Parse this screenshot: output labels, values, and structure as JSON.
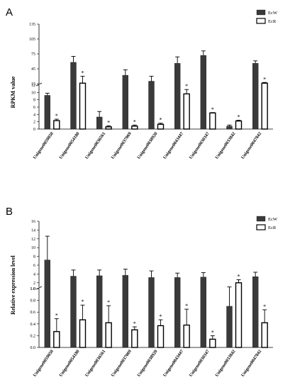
{
  "chart_data": [
    {
      "type": "bar",
      "panel": "A",
      "ylabel": "RPKM value",
      "categories": [
        "Unigene0059050",
        "Unigene0054180",
        "Unigene0036561",
        "Unigene0037069",
        "Unigene0038920",
        "Unigene0043447",
        "Unigene0030347",
        "Unigene0033842",
        "Unigene0047842"
      ],
      "series": [
        {
          "name": "EcW",
          "values": [
            9.2,
            58,
            3.3,
            32,
            20,
            56,
            72,
            0.8,
            56
          ],
          "errors": [
            0.6,
            12,
            1.5,
            11,
            10,
            13,
            9,
            0.3,
            5
          ],
          "color": "#3a3a3a"
        },
        {
          "name": "EcR",
          "values": [
            2.3,
            16,
            0.6,
            0.8,
            1.3,
            9.6,
            4.4,
            2.2,
            16
          ],
          "errors": [
            0.4,
            14,
            0.3,
            0.3,
            0.3,
            1.2,
            0.1,
            0.2,
            1.5
          ],
          "color": "#ffffff"
        }
      ],
      "significance": [
        "*",
        "*",
        "*",
        "*",
        "*",
        "*",
        "*",
        "*",
        "*"
      ],
      "lower_ticks": [
        "0",
        "2",
        "4",
        "6",
        "8",
        "10",
        "12"
      ],
      "upper_ticks": [
        "15",
        "45",
        "75",
        "105",
        "135"
      ],
      "axis_break": [
        12,
        15
      ],
      "ylim": [
        0,
        135
      ],
      "legend": "top-right"
    },
    {
      "type": "bar",
      "panel": "B",
      "ylabel": "Relative expression level",
      "categories": [
        "Unigene0059050",
        "Unigene0054180",
        "Unigene0036561",
        "Unigene0037069",
        "Unigene0038920",
        "Unigene0043447",
        "Unigene0030347",
        "Unigene0033842",
        "Unigene0047842"
      ],
      "series": [
        {
          "name": "EcW",
          "values": [
            7.2,
            3.5,
            3.6,
            3.7,
            3.2,
            3.2,
            3.3,
            0.7,
            3.4
          ],
          "errors": [
            5.4,
            1.4,
            1.3,
            1.4,
            1.5,
            1.0,
            1.0,
            0.35,
            1.0
          ],
          "color": "#3a3a3a"
        },
        {
          "name": "EcR",
          "values": [
            0.27,
            0.47,
            0.42,
            0.3,
            0.37,
            0.38,
            0.14,
            2.0,
            0.42
          ],
          "errors": [
            0.22,
            0.25,
            0.29,
            0.05,
            0.1,
            0.27,
            0.06,
            0.7,
            0.22
          ],
          "color": "#ffffff"
        }
      ],
      "significance": [
        "*",
        "*",
        "*",
        "*",
        "*",
        "*",
        "*",
        "*",
        "*"
      ],
      "lower_ticks": [
        "0.0",
        "0.2",
        "0.4",
        "0.6",
        "0.8",
        "1.0"
      ],
      "upper_ticks": [
        "1.0",
        "2",
        "4",
        "6",
        "8",
        "10",
        "12",
        "14",
        "16"
      ],
      "axis_break": [
        1.0,
        1.0
      ],
      "ylim": [
        0,
        16
      ],
      "legend": "top-right"
    }
  ]
}
